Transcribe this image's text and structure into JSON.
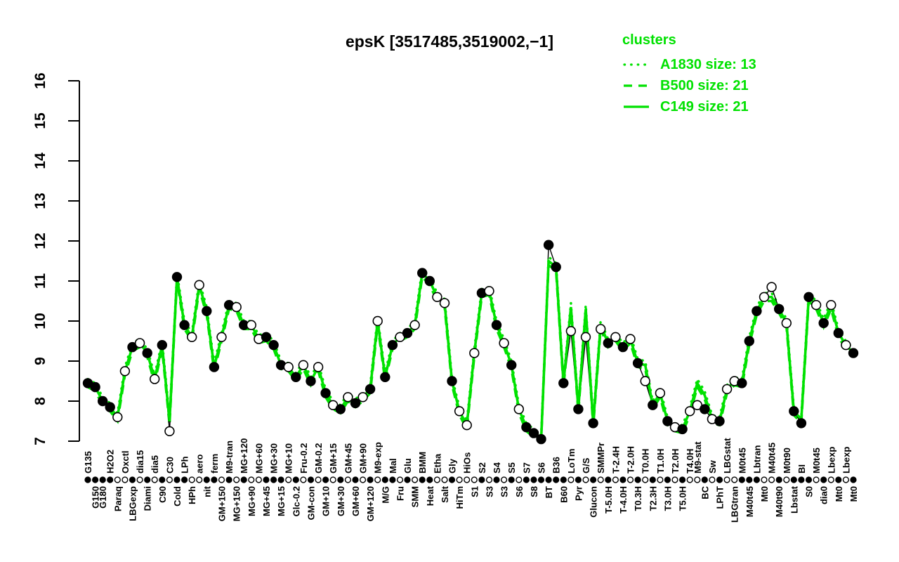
{
  "figure": {
    "title": "epsK [3517485,3519002,−1]"
  },
  "legend": {
    "title": "clusters",
    "items": [
      {
        "label": "A1830 size: 13",
        "style": "dotted"
      },
      {
        "label": "B500 size: 21",
        "style": "dashed"
      },
      {
        "label": "C149 size: 21",
        "style": "solid"
      }
    ]
  },
  "colors": {
    "cluster_green": "#00e100",
    "point_black": "#000000",
    "open_point_fill": "#ffffff",
    "axis_black": "#000000",
    "background": "#ffffff"
  },
  "chart_data": {
    "type": "line",
    "title": "epsK [3517485,3519002,−1]",
    "xlabel": "",
    "ylabel": "",
    "ylim": [
      7,
      16
    ],
    "y_ticks": [
      7,
      8,
      9,
      10,
      11,
      12,
      13,
      14,
      15,
      16
    ],
    "grid": false,
    "legend_position": "top-right",
    "categories": [
      "G135",
      "G150",
      "G180",
      "H2O2",
      "Paraq",
      "Oxctl",
      "LBGexp",
      "dia15",
      "Diami",
      "dia5",
      "C90",
      "C30",
      "Cold",
      "LPh",
      "HPh",
      "aero",
      "nit",
      "ferm",
      "GM+150",
      "M9-tran",
      "MG+150",
      "MG+120",
      "MG+90",
      "MG+60",
      "MG+45",
      "MG+30",
      "MG+15",
      "MG+10",
      "Glc-0.2",
      "Fru-0.2",
      "GM-con",
      "GM-0.2",
      "GM+10",
      "GM+15",
      "GM+30",
      "GM+45",
      "GM+60",
      "GM+90",
      "GM+120",
      "M9-exp",
      "M/G",
      "Mal",
      "Fru",
      "Glu",
      "SMM",
      "BMM",
      "Heat",
      "Etha",
      "Salt",
      "Gly",
      "HiTm",
      "HiOs",
      "S1",
      "S2",
      "S3",
      "S4",
      "S3",
      "S5",
      "S6",
      "S7",
      "S8",
      "S6",
      "BT",
      "B36",
      "B60",
      "LoTm",
      "Pyr",
      "G/S",
      "Glucon",
      "SMMPr",
      "T-5.0H",
      "T-2.4H",
      "T-4.0H",
      "T-2.0H",
      "T0.3H",
      "T0.0H",
      "T2.3H",
      "T1.0H",
      "T3.0H",
      "T2.0H",
      "T5.0H",
      "T4.0H",
      "M9-stat",
      "BC",
      "Sw",
      "LPhT",
      "LBGstat",
      "LBGtran",
      "M0t45",
      "M40t45",
      "Lbtran",
      "Mt0",
      "M40t45",
      "M40t90",
      "M0t90",
      "Lbstat",
      "BI",
      "S0",
      "M0t45",
      "dia0",
      "Lbexp",
      "Mt0",
      "Lbexp",
      "Mt0"
    ],
    "x_label_row": [
      "t",
      "b",
      "b",
      "t",
      "b",
      "t",
      "b",
      "t",
      "b",
      "t",
      "b",
      "t",
      "b",
      "t",
      "b",
      "t",
      "b",
      "t",
      "b",
      "t",
      "b",
      "t",
      "b",
      "t",
      "b",
      "t",
      "b",
      "t",
      "b",
      "t",
      "b",
      "t",
      "b",
      "t",
      "b",
      "t",
      "b",
      "t",
      "b",
      "t",
      "b",
      "t",
      "b",
      "t",
      "b",
      "t",
      "b",
      "t",
      "b",
      "t",
      "b",
      "t",
      "b",
      "t",
      "b",
      "t",
      "b",
      "t",
      "b",
      "t",
      "b",
      "t",
      "b",
      "t",
      "b",
      "t",
      "b",
      "t",
      "b",
      "t",
      "b",
      "t",
      "b",
      "t",
      "b",
      "t",
      "b",
      "t",
      "b",
      "t",
      "b",
      "t",
      "t",
      "b",
      "t",
      "b",
      "t",
      "b",
      "t",
      "b",
      "t",
      "b",
      "t",
      "b",
      "t",
      "b",
      "t",
      "b",
      "t",
      "b",
      "t",
      "b",
      "t",
      "b"
    ],
    "gene_profile": {
      "marker": "circle",
      "values": [
        8.45,
        8.35,
        8.0,
        7.85,
        7.6,
        8.75,
        9.35,
        9.45,
        9.2,
        8.55,
        9.4,
        7.25,
        11.1,
        9.9,
        9.6,
        10.9,
        10.25,
        8.85,
        9.6,
        10.4,
        10.35,
        9.9,
        9.9,
        9.55,
        9.6,
        9.4,
        8.9,
        8.85,
        8.6,
        8.9,
        8.5,
        8.85,
        8.2,
        7.9,
        7.8,
        8.1,
        7.95,
        8.1,
        8.3,
        10.0,
        8.6,
        9.4,
        9.6,
        9.7,
        9.9,
        11.2,
        11.0,
        10.6,
        10.45,
        8.5,
        7.75,
        7.4,
        9.2,
        10.7,
        10.75,
        9.9,
        9.45,
        8.9,
        7.8,
        7.35,
        7.2,
        7.05,
        11.9,
        11.35,
        8.45,
        9.75,
        7.8,
        9.6,
        7.45,
        9.8,
        9.45,
        9.6,
        9.35,
        9.55,
        8.95,
        8.5,
        7.9,
        8.2,
        7.5,
        7.35,
        7.3,
        7.75,
        7.9,
        7.8,
        7.55,
        7.5,
        8.3,
        8.5,
        8.45,
        9.5,
        10.25,
        10.6,
        10.85,
        10.3,
        9.95,
        7.75,
        7.45,
        10.6,
        10.4,
        9.95,
        10.4,
        9.7,
        9.4,
        9.2
      ],
      "fill": [
        "f",
        "f",
        "f",
        "f",
        "o",
        "o",
        "f",
        "o",
        "f",
        "o",
        "f",
        "o",
        "f",
        "f",
        "o",
        "o",
        "f",
        "f",
        "o",
        "f",
        "o",
        "f",
        "o",
        "o",
        "f",
        "f",
        "f",
        "o",
        "f",
        "o",
        "f",
        "o",
        "f",
        "o",
        "f",
        "o",
        "f",
        "o",
        "f",
        "o",
        "f",
        "f",
        "o",
        "f",
        "o",
        "f",
        "f",
        "o",
        "o",
        "f",
        "o",
        "o",
        "o",
        "f",
        "o",
        "f",
        "o",
        "f",
        "o",
        "f",
        "f",
        "f",
        "f",
        "f",
        "f",
        "o",
        "f",
        "o",
        "f",
        "o",
        "f",
        "o",
        "f",
        "o",
        "f",
        "o",
        "f",
        "o",
        "f",
        "o",
        "f",
        "o",
        "o",
        "f",
        "o",
        "f",
        "o",
        "o",
        "f",
        "f",
        "f",
        "o",
        "o",
        "f",
        "o",
        "f",
        "f",
        "f",
        "o",
        "f",
        "o",
        "f",
        "o",
        "f"
      ]
    },
    "series": [
      {
        "name": "A1830 size: 13",
        "style": "dotted",
        "values": [
          8.55,
          8.45,
          8.1,
          7.95,
          7.7,
          8.85,
          9.45,
          9.55,
          9.3,
          8.65,
          9.5,
          7.6,
          11.2,
          10.0,
          9.7,
          11.0,
          10.35,
          8.95,
          9.7,
          10.5,
          10.45,
          10.0,
          10.0,
          9.65,
          9.7,
          9.5,
          9.0,
          8.95,
          8.7,
          9.0,
          8.6,
          8.95,
          8.3,
          8.0,
          7.9,
          8.2,
          8.05,
          8.2,
          8.4,
          10.1,
          8.7,
          9.5,
          9.7,
          9.8,
          10.0,
          11.3,
          11.1,
          10.7,
          10.55,
          8.6,
          7.85,
          7.5,
          9.3,
          10.8,
          10.85,
          10.0,
          9.55,
          9.0,
          7.9,
          7.45,
          7.3,
          7.15,
          11.6,
          11.45,
          8.55,
          10.45,
          7.9,
          10.4,
          7.55,
          10.0,
          9.55,
          9.7,
          9.45,
          9.65,
          9.05,
          9.0,
          8.0,
          8.3,
          7.6,
          7.45,
          7.4,
          7.85,
          8.55,
          8.25,
          7.65,
          7.6,
          8.4,
          8.6,
          8.55,
          9.6,
          10.35,
          10.7,
          10.7,
          10.4,
          10.05,
          7.85,
          7.65,
          10.7,
          10.5,
          10.05,
          10.5,
          9.8,
          9.5,
          9.3
        ]
      },
      {
        "name": "B500 size: 21",
        "style": "dashed",
        "values": [
          8.35,
          8.25,
          7.9,
          7.75,
          7.5,
          8.65,
          9.25,
          9.35,
          9.1,
          8.45,
          9.3,
          7.4,
          11.0,
          9.8,
          9.5,
          10.8,
          10.15,
          8.75,
          9.5,
          10.3,
          10.25,
          9.8,
          9.8,
          9.45,
          9.5,
          9.3,
          8.8,
          8.75,
          8.5,
          8.8,
          8.4,
          8.75,
          8.1,
          7.8,
          7.7,
          8.0,
          7.85,
          8.0,
          8.2,
          9.9,
          8.5,
          9.3,
          9.5,
          9.6,
          9.8,
          11.1,
          10.9,
          10.5,
          10.35,
          8.4,
          7.65,
          7.3,
          9.1,
          10.6,
          10.65,
          9.8,
          9.35,
          8.8,
          7.7,
          7.25,
          7.1,
          7.0,
          11.4,
          11.25,
          8.35,
          10.25,
          7.7,
          10.2,
          7.35,
          9.8,
          9.35,
          9.5,
          9.25,
          9.45,
          8.85,
          8.8,
          7.8,
          8.1,
          7.4,
          7.25,
          7.2,
          7.65,
          8.35,
          8.05,
          7.45,
          7.4,
          8.2,
          8.4,
          8.35,
          9.4,
          10.15,
          10.5,
          10.5,
          10.2,
          9.85,
          7.65,
          7.45,
          10.5,
          10.3,
          9.85,
          10.3,
          9.6,
          9.3,
          9.1
        ]
      },
      {
        "name": "C149 size: 21",
        "style": "solid",
        "values": [
          8.45,
          8.35,
          8.0,
          7.85,
          7.6,
          8.75,
          9.35,
          9.45,
          9.2,
          8.55,
          9.4,
          7.5,
          11.1,
          9.9,
          9.6,
          10.9,
          10.25,
          8.85,
          9.6,
          10.4,
          10.35,
          9.9,
          9.9,
          9.55,
          9.6,
          9.4,
          8.9,
          8.85,
          8.6,
          8.9,
          8.5,
          8.85,
          8.2,
          7.9,
          7.8,
          8.1,
          7.95,
          8.1,
          8.3,
          10.0,
          8.6,
          9.4,
          9.6,
          9.7,
          9.9,
          11.2,
          11.0,
          10.6,
          10.45,
          8.5,
          7.75,
          7.4,
          9.2,
          10.7,
          10.75,
          9.9,
          9.45,
          8.9,
          7.8,
          7.35,
          7.2,
          7.05,
          11.5,
          11.35,
          8.45,
          10.35,
          7.8,
          10.3,
          7.45,
          9.9,
          9.45,
          9.6,
          9.35,
          9.55,
          8.95,
          8.9,
          7.9,
          8.2,
          7.5,
          7.35,
          7.3,
          7.75,
          8.45,
          8.15,
          7.55,
          7.5,
          8.3,
          8.5,
          8.45,
          9.5,
          10.25,
          10.6,
          10.6,
          10.3,
          9.95,
          7.75,
          7.55,
          10.6,
          10.4,
          9.95,
          10.4,
          9.7,
          9.4,
          9.2
        ]
      }
    ]
  }
}
